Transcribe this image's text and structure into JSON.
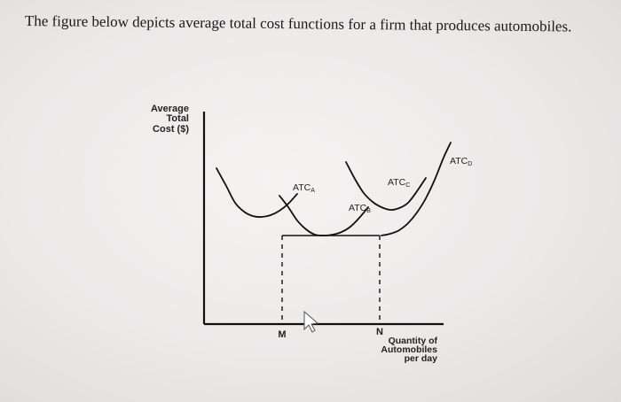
{
  "question_text": "The figure below depicts average total cost functions for a firm that produces automobiles.",
  "chart_data": {
    "type": "line",
    "title": "",
    "ylabel_lines": [
      "Average",
      "Total",
      "Cost ($)"
    ],
    "xlabel_lines": [
      "Quantity of",
      "Automobiles",
      "per day"
    ],
    "x_markers": [
      {
        "label": "M",
        "x": 88
      },
      {
        "label": "N",
        "x": 198
      }
    ],
    "minimum_cost_level": 100,
    "xlim": [
      0,
      280
    ],
    "ylim": [
      0,
      240
    ],
    "series": [
      {
        "name": "ATC",
        "subscript": "A",
        "x": [
          14,
          25,
          35,
          45,
          55,
          65,
          75,
          85,
          95,
          105
        ],
        "y": [
          176,
          156,
          137,
          127,
          122,
          121,
          123,
          128,
          136,
          147
        ]
      },
      {
        "name": "ATC",
        "subscript": "B",
        "x": [
          85,
          95,
          105,
          115,
          125,
          135,
          145,
          155,
          165,
          175,
          185
        ],
        "y": [
          145,
          132,
          117,
          107,
          101,
          100,
          101,
          104,
          110,
          120,
          132
        ]
      },
      {
        "name": "ATC",
        "subscript": "C",
        "x": [
          160,
          170,
          180,
          190,
          200,
          210,
          220,
          230,
          240,
          250
        ],
        "y": [
          183,
          164,
          148,
          138,
          132,
          129,
          131,
          137,
          150,
          165
        ]
      },
      {
        "name": "ATC",
        "subscript": "D",
        "x": [
          200,
          210,
          220,
          230,
          240,
          250,
          260,
          270,
          278
        ],
        "y": [
          100,
          102,
          106,
          114,
          126,
          142,
          163,
          188,
          205
        ]
      }
    ]
  }
}
